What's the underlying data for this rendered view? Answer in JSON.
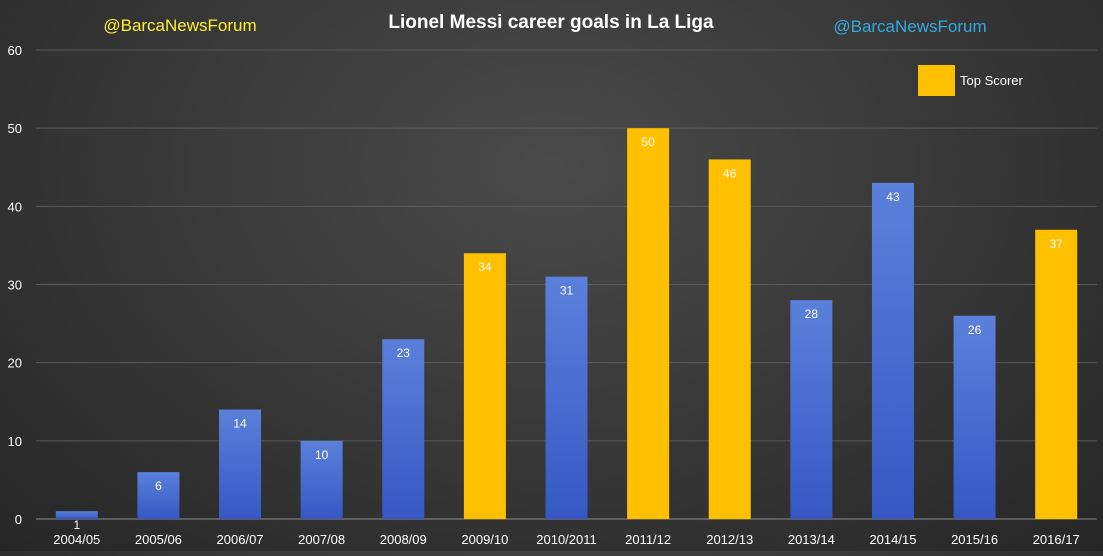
{
  "header": {
    "handle_left": "@BarcaNewsForum",
    "handle_right": "@BarcaNewsForum"
  },
  "colors": {
    "normal_bar": "#4a73d6",
    "top_scorer_bar": "#ffc000",
    "handle_left": "#ffee33",
    "handle_right": "#33aadd"
  },
  "chart_data": {
    "type": "bar",
    "title": "Lionel Messi career goals in La Liga",
    "xlabel": "",
    "ylabel": "",
    "ylim": [
      0,
      60
    ],
    "yticks": [
      0,
      10,
      20,
      30,
      40,
      50,
      60
    ],
    "grid": true,
    "legend": {
      "position": "top-right",
      "entries": [
        "Top Scorer"
      ]
    },
    "categories": [
      "2004/05",
      "2005/06",
      "2006/07",
      "2007/08",
      "2008/09",
      "2009/10",
      "2010/2011",
      "2011/12",
      "2012/13",
      "2013/14",
      "2014/15",
      "2015/16",
      "2016/17"
    ],
    "values": [
      1,
      6,
      14,
      10,
      23,
      34,
      31,
      50,
      46,
      28,
      43,
      26,
      37
    ],
    "top_scorer": [
      false,
      false,
      false,
      false,
      false,
      true,
      false,
      true,
      true,
      false,
      false,
      false,
      true
    ]
  }
}
